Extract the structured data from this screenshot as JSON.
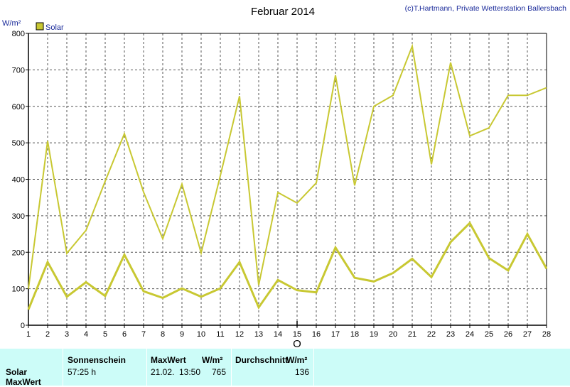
{
  "chart_data": {
    "type": "line",
    "title": "Februar 2014",
    "copyright": "(c)T.Hartmann, Private Wetterstation Ballersbach",
    "ylabel": "W/m²",
    "ylim": [
      0,
      800
    ],
    "yticks": [
      0,
      100,
      200,
      300,
      400,
      500,
      600,
      700,
      800
    ],
    "x": [
      1,
      2,
      3,
      4,
      5,
      6,
      7,
      8,
      9,
      10,
      11,
      12,
      13,
      14,
      15,
      16,
      17,
      18,
      19,
      20,
      21,
      22,
      23,
      24,
      25,
      26,
      27,
      28
    ],
    "xlim": [
      1,
      28
    ],
    "grid": true,
    "legend_position": "top-left",
    "marker_label": "O",
    "marker_x": 15,
    "series": [
      {
        "name": "Solar",
        "role": "max",
        "color": "#c8c832",
        "values": [
          100,
          505,
          197,
          260,
          395,
          525,
          365,
          237,
          387,
          198,
          410,
          628,
          110,
          364,
          335,
          390,
          685,
          383,
          600,
          630,
          765,
          441,
          720,
          519,
          541,
          630,
          630,
          651
        ]
      },
      {
        "name": "",
        "role": "average",
        "color": "#c8c832",
        "values": [
          43,
          173,
          78,
          118,
          80,
          193,
          93,
          75,
          101,
          78,
          101,
          173,
          49,
          124,
          96,
          90,
          213,
          130,
          120,
          143,
          182,
          132,
          228,
          280,
          184,
          150,
          250,
          155
        ]
      }
    ]
  },
  "table": {
    "row_labels": [
      "Solar",
      "MaxWert"
    ],
    "headers": {
      "sonnenschein": "Sonnenschein",
      "maxwert": "MaxWert",
      "unit1": "W/m²",
      "durchschnitt": "Durchschnitt",
      "unit2": "W/m²"
    },
    "values": {
      "sonnenschein": "57:25 h",
      "max_date": "21.02.",
      "max_time": "13:50",
      "max_value": "765",
      "durchschnitt": "136"
    }
  }
}
